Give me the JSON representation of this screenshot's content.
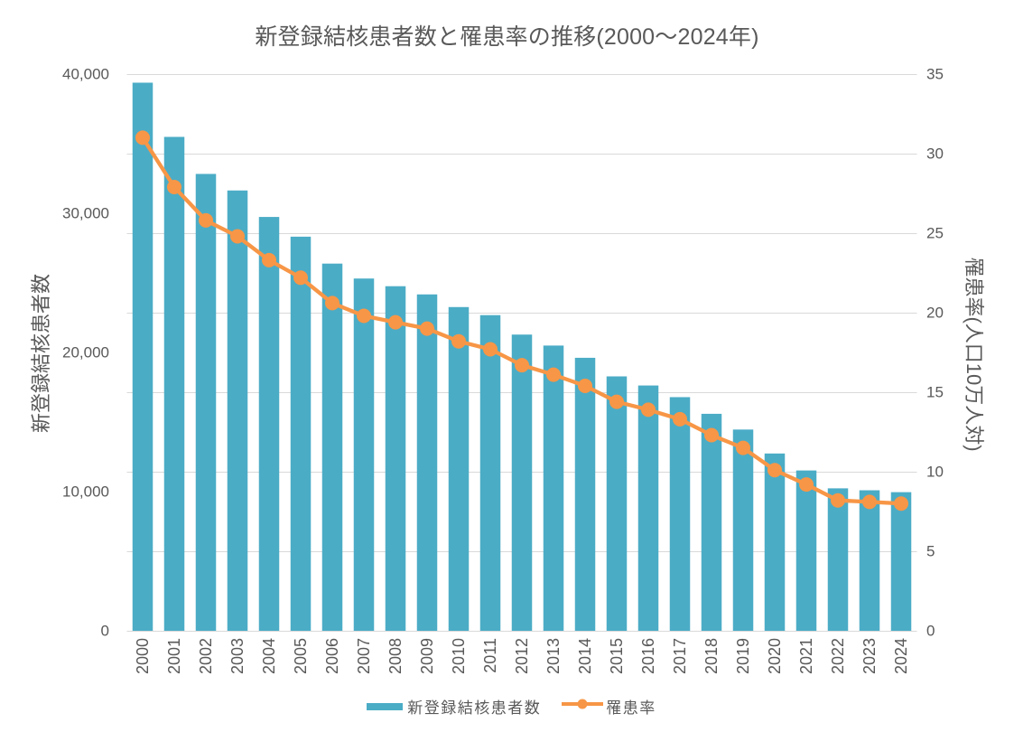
{
  "chart_data": {
    "type": "bar+line",
    "title": "新登録結核患者数と罹患率の推移(2000〜2024年)",
    "categories": [
      "2000",
      "2001",
      "2002",
      "2003",
      "2004",
      "2005",
      "2006",
      "2007",
      "2008",
      "2009",
      "2010",
      "2011",
      "2012",
      "2013",
      "2014",
      "2015",
      "2016",
      "2017",
      "2018",
      "2019",
      "2020",
      "2021",
      "2022",
      "2023",
      "2024"
    ],
    "series": [
      {
        "name": "新登録結核患者数",
        "type": "bar",
        "axis": "left",
        "values": [
          39384,
          35489,
          32828,
          31638,
          29736,
          28319,
          26384,
          25311,
          24760,
          24170,
          23261,
          22681,
          21283,
          20495,
          19615,
          18280,
          17625,
          16789,
          15590,
          14460,
          12739,
          11519,
          10235,
          10096,
          9960
        ]
      },
      {
        "name": "罹患率",
        "type": "line",
        "axis": "right",
        "values": [
          31.0,
          27.9,
          25.8,
          24.8,
          23.3,
          22.2,
          20.6,
          19.8,
          19.4,
          19.0,
          18.2,
          17.7,
          16.7,
          16.1,
          15.4,
          14.4,
          13.9,
          13.3,
          12.3,
          11.5,
          10.1,
          9.2,
          8.2,
          8.1,
          8.0
        ]
      }
    ],
    "left_axis": {
      "title": "新登録結核患者数",
      "min": 0,
      "max": 40000,
      "tick_labels": [
        "0",
        "10,000",
        "20,000",
        "30,000",
        "40,000"
      ],
      "tick_values": [
        0,
        10000,
        20000,
        30000,
        40000
      ]
    },
    "right_axis": {
      "title": "罹患率(人口10万人対)",
      "min": 0,
      "max": 35,
      "tick_labels": [
        "0",
        "5",
        "10",
        "15",
        "20",
        "25",
        "30",
        "35"
      ],
      "tick_values": [
        0,
        5,
        10,
        15,
        20,
        25,
        30,
        35
      ]
    },
    "grid": "horizontal",
    "legend_position": "bottom"
  },
  "colors": {
    "bar": "#4BACC6",
    "line": "#F79646",
    "grid": "#D9D9D9",
    "axis_line": "#D9D9D9",
    "text": "#595959",
    "background": "#FFFFFF"
  }
}
